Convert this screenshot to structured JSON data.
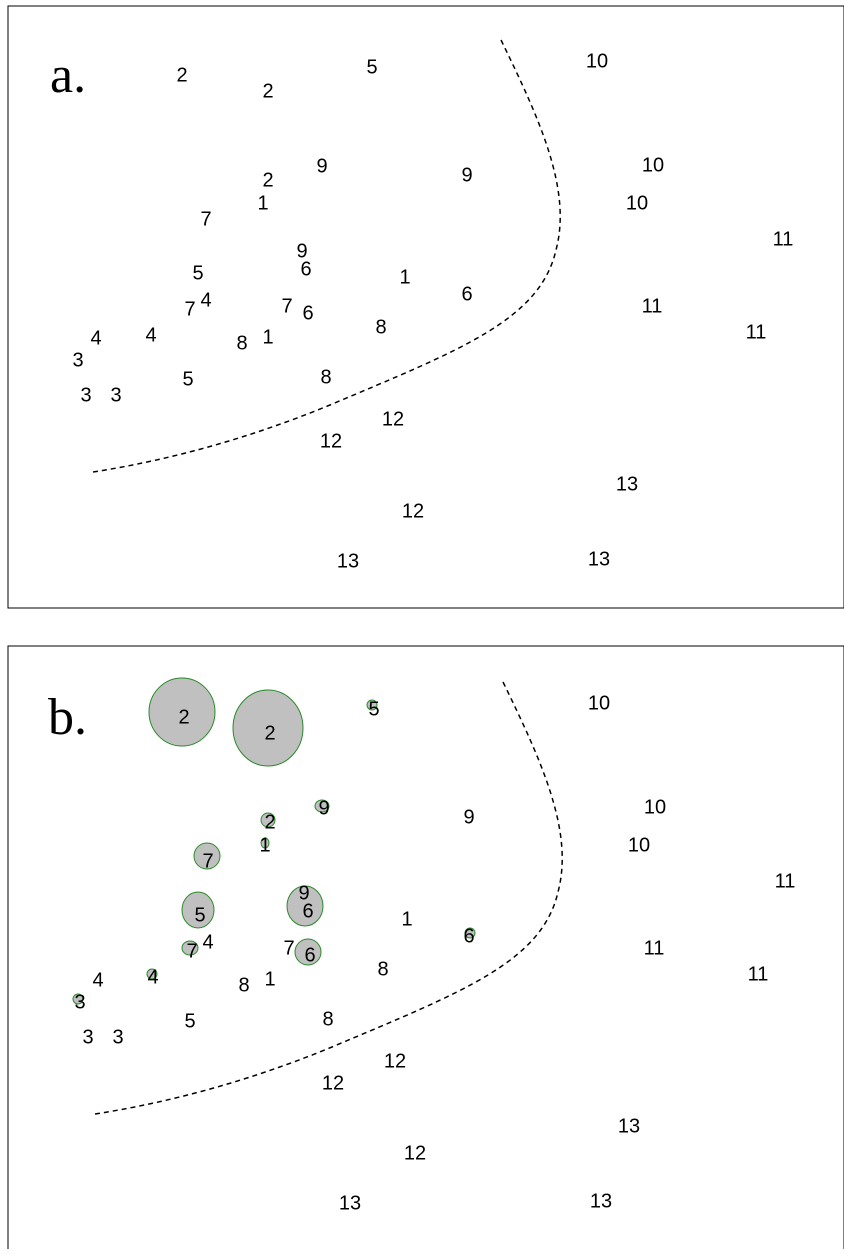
{
  "panels": [
    {
      "label": "a.",
      "points": [
        "2",
        "2",
        "5",
        "10",
        "9",
        "9",
        "10",
        "2",
        "1",
        "10",
        "7",
        "11",
        "9",
        "6",
        "5",
        "1",
        "6",
        "7",
        "4",
        "7",
        "6",
        "11",
        "11",
        "4",
        "4",
        "3",
        "8",
        "1",
        "8",
        "3",
        "3",
        "5",
        "8",
        "12",
        "12",
        "13",
        "12",
        "13",
        "13"
      ]
    },
    {
      "label": "b.",
      "points": [
        "2",
        "2",
        "5",
        "10",
        "9",
        "9",
        "10",
        "2",
        "1",
        "10",
        "7",
        "11",
        "9",
        "6",
        "5",
        "1",
        "6",
        "7",
        "4",
        "7",
        "6",
        "11",
        "11",
        "4",
        "4",
        "3",
        "8",
        "1",
        "8",
        "3",
        "3",
        "5",
        "8",
        "12",
        "12",
        "13",
        "12",
        "13",
        "13"
      ]
    }
  ]
}
